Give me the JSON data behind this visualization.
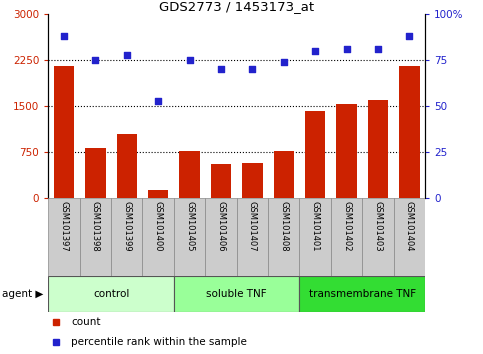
{
  "title": "GDS2773 / 1453173_at",
  "samples": [
    "GSM101397",
    "GSM101398",
    "GSM101399",
    "GSM101400",
    "GSM101405",
    "GSM101406",
    "GSM101407",
    "GSM101408",
    "GSM101401",
    "GSM101402",
    "GSM101403",
    "GSM101404"
  ],
  "counts": [
    2150,
    820,
    1050,
    130,
    770,
    550,
    575,
    770,
    1420,
    1530,
    1600,
    2150
  ],
  "percentiles": [
    88,
    75,
    78,
    53,
    75,
    70,
    70,
    74,
    80,
    81,
    81,
    88
  ],
  "bar_color": "#cc2200",
  "dot_color": "#2222cc",
  "ylim_left": [
    0,
    3000
  ],
  "ylim_right": [
    0,
    100
  ],
  "yticks_left": [
    0,
    750,
    1500,
    2250,
    3000
  ],
  "yticks_right": [
    0,
    25,
    50,
    75,
    100
  ],
  "ytick_right_labels": [
    "0",
    "25",
    "50",
    "75",
    "100%"
  ],
  "groups": [
    {
      "label": "control",
      "start": 0,
      "end": 3,
      "color": "#ccffcc"
    },
    {
      "label": "soluble TNF",
      "start": 4,
      "end": 7,
      "color": "#99ff99"
    },
    {
      "label": "transmembrane TNF",
      "start": 8,
      "end": 11,
      "color": "#33dd33"
    }
  ],
  "agent_label": "agent",
  "legend_count": "count",
  "legend_percentile": "percentile rank within the sample",
  "tick_color_left": "#cc2200",
  "tick_color_right": "#2222cc",
  "bg_color": "#ffffff",
  "xticklabel_bg": "#cccccc",
  "grid_linestyle": "dotted",
  "grid_color": "#000000"
}
